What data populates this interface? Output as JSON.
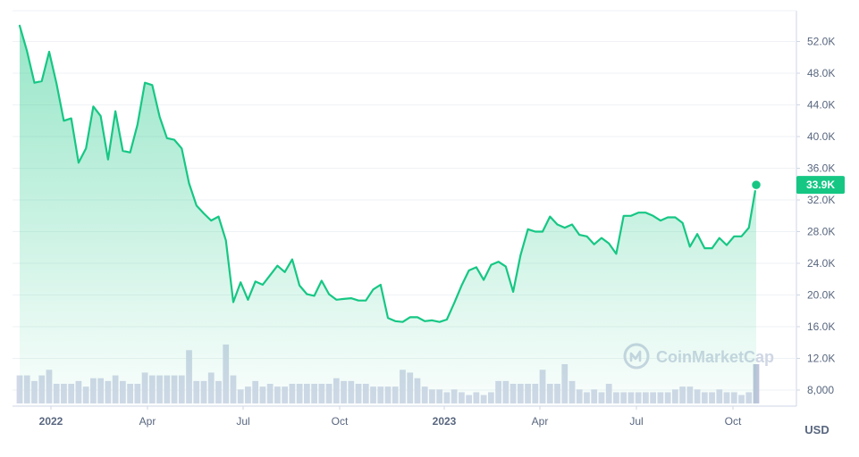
{
  "chart_data": {
    "type": "line",
    "title": "",
    "xlabel": "",
    "ylabel": "",
    "unit_label": "USD",
    "y_ticks": [
      "8,000",
      "12.0K",
      "16.0K",
      "20.0K",
      "24.0K",
      "28.0K",
      "32.0K",
      "36.0K",
      "40.0K",
      "44.0K",
      "48.0K",
      "52.0K"
    ],
    "x_ticks": [
      {
        "label": "2022",
        "year": true
      },
      {
        "label": "Apr",
        "year": false
      },
      {
        "label": "Jul",
        "year": false
      },
      {
        "label": "Oct",
        "year": false
      },
      {
        "label": "2023",
        "year": true
      },
      {
        "label": "Apr",
        "year": false
      },
      {
        "label": "Jul",
        "year": false
      },
      {
        "label": "Oct",
        "year": false
      }
    ],
    "ylim": [
      5600,
      56000
    ],
    "grid": true,
    "last_value_label": "33.9K",
    "watermark": "CoinMarketCap",
    "colors": {
      "line": "#16c784",
      "badge": "#16c784",
      "volume": "#d2d8e8",
      "volume_last": "#bcc5da",
      "grid": "#eff2f5"
    },
    "series": [
      {
        "values": [
          54000,
          50800,
          46800,
          47000,
          50700,
          46700,
          42000,
          42300,
          36700,
          38500,
          43800,
          42600,
          37100,
          43200,
          38200,
          38000,
          41500,
          46800,
          46500,
          42500,
          39800,
          39600,
          38500,
          34100,
          31300,
          30300,
          29400,
          29900,
          26900,
          19100,
          21600,
          19400,
          21700,
          21300,
          22500,
          23700,
          22900,
          24500,
          21200,
          20100,
          19900,
          21800,
          20100,
          19400,
          19500,
          19600,
          19300,
          19300,
          20700,
          21300,
          17100,
          16700,
          16600,
          17200,
          17200,
          16700,
          16800,
          16600,
          16900,
          19000,
          21200,
          23100,
          23500,
          21900,
          23800,
          24200,
          23600,
          20400,
          25000,
          28300,
          28000,
          28000,
          29900,
          28900,
          28500,
          28900,
          27600,
          27400,
          26400,
          27200,
          26500,
          25200,
          30000,
          30000,
          30400,
          30400,
          30000,
          29400,
          29800,
          29800,
          29100,
          26100,
          27700,
          25900,
          25900,
          27200,
          26300,
          27400,
          27400,
          28500,
          33900
        ]
      }
    ],
    "volume": [
      10,
      10,
      8,
      10,
      12,
      7,
      7,
      7,
      8,
      6,
      9,
      9,
      8,
      10,
      8,
      7,
      7,
      11,
      10,
      10,
      10,
      10,
      10,
      19,
      8,
      8,
      11,
      8,
      21,
      10,
      5,
      6,
      8,
      6,
      7,
      6,
      6,
      7,
      7,
      7,
      7,
      7,
      7,
      9,
      8,
      8,
      7,
      7,
      6,
      6,
      6,
      6,
      12,
      11,
      9,
      6,
      5,
      5,
      4,
      5,
      4,
      3,
      4,
      3,
      4,
      8,
      8,
      7,
      7,
      7,
      7,
      12,
      7,
      7,
      14,
      8,
      5,
      4,
      5,
      4,
      7,
      4,
      4,
      4,
      4,
      4,
      4,
      4,
      4,
      5,
      6,
      6,
      5,
      4,
      4,
      5,
      4,
      4,
      3,
      4,
      14
    ]
  }
}
